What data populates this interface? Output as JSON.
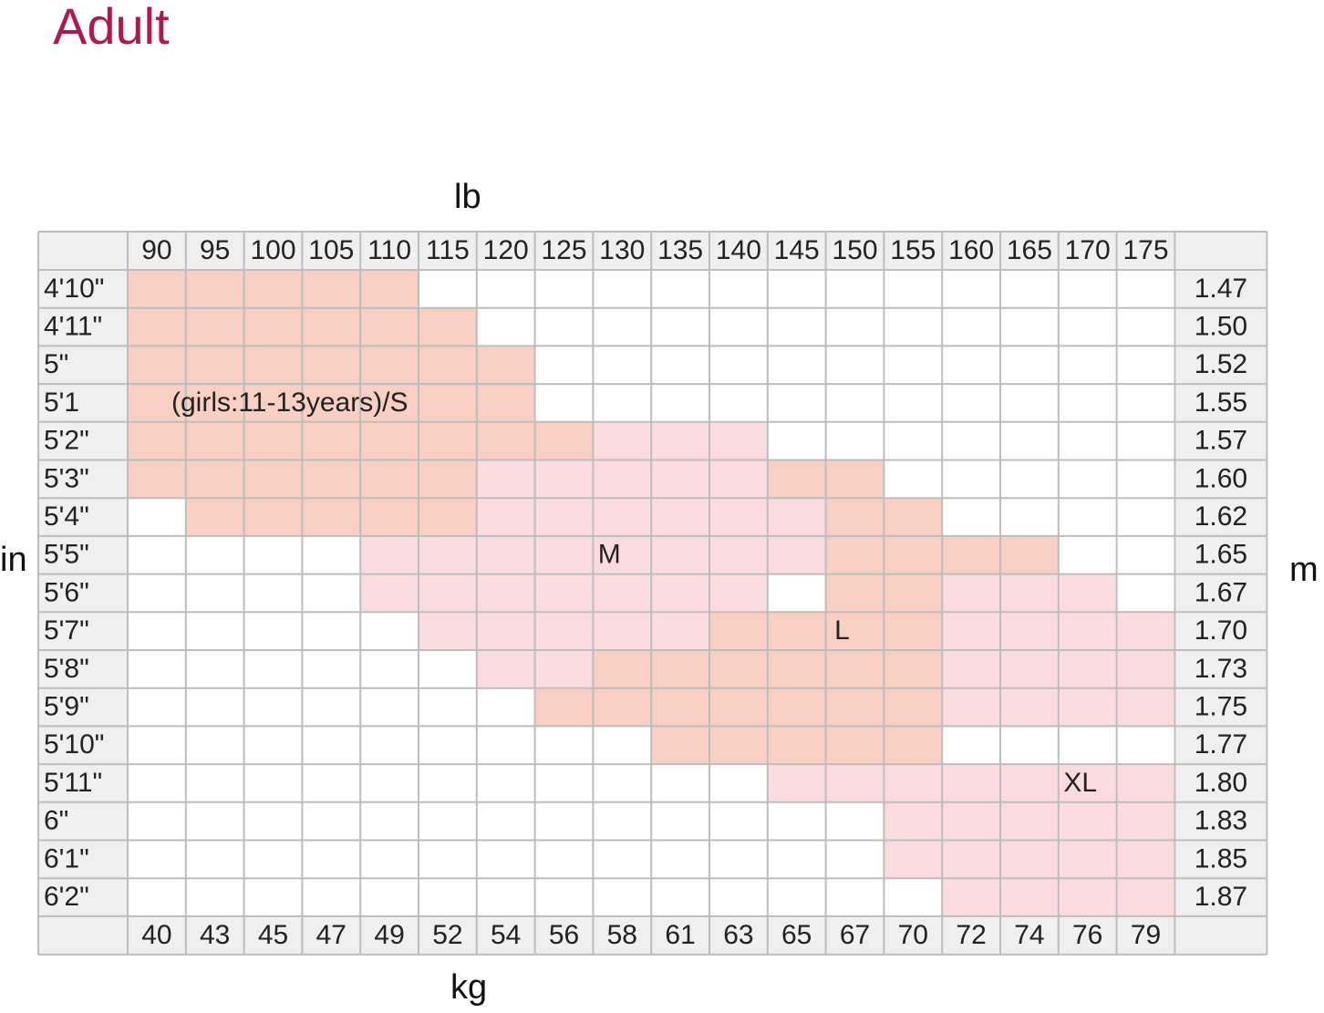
{
  "header": {
    "title": "Adult"
  },
  "axes": {
    "top": "lb",
    "bottom": "kg",
    "left": "in",
    "right": "m"
  },
  "colors": {
    "title": "#b0184f",
    "size_S": "#f8cfc3",
    "size_M": "#fadbe0",
    "size_L": "#f8cfc3",
    "size_XL": "#fadbe0",
    "header_bg": "#efefef",
    "grid": "#bdbdbd",
    "empty": "#ffffff"
  },
  "chart_data": {
    "type": "table",
    "title": "Adult",
    "x_top_label": "lb",
    "x_bottom_label": "kg",
    "y_left_label": "in",
    "y_right_label": "m",
    "weights_lb": [
      "90",
      "95",
      "100",
      "105",
      "110",
      "115",
      "120",
      "125",
      "130",
      "135",
      "140",
      "145",
      "150",
      "155",
      "160",
      "165",
      "170",
      "175"
    ],
    "weights_kg": [
      "40",
      "43",
      "45",
      "47",
      "49",
      "52",
      "54",
      "56",
      "58",
      "61",
      "63",
      "65",
      "67",
      "70",
      "72",
      "74",
      "76",
      "79"
    ],
    "heights_ft": [
      "4'10\"",
      "4'11\"",
      "5\"",
      "5'1",
      "5'2\"",
      "5'3\"",
      "5'4\"",
      "5'5\"",
      "5'6\"",
      "5'7\"",
      "5'8\"",
      "5'9\"",
      "5'10\"",
      "5'11\"",
      "6\"",
      "6'1\"",
      "6'2\""
    ],
    "heights_m": [
      "1.47",
      "1.50",
      "1.52",
      "1.55",
      "1.57",
      "1.60",
      "1.62",
      "1.65",
      "1.67",
      "1.70",
      "1.73",
      "1.75",
      "1.77",
      "1.80",
      "1.83",
      "1.85",
      "1.87"
    ],
    "sizes": [
      {
        "name": "S",
        "label": "(girls:11-13years)/S",
        "ranges": [
          [
            0,
            4
          ],
          [
            0,
            5
          ],
          [
            0,
            6
          ],
          [
            0,
            6
          ],
          [
            0,
            7
          ],
          [
            0,
            5
          ],
          [
            1,
            5
          ]
        ],
        "rows": [
          0,
          1,
          2,
          3,
          4,
          5,
          6
        ]
      },
      {
        "name": "M",
        "label": "M",
        "ranges": [
          [
            8,
            10
          ],
          [
            6,
            10
          ],
          [
            6,
            11
          ],
          [
            4,
            11
          ],
          [
            4,
            10
          ],
          [
            5,
            9
          ],
          [
            6,
            7
          ]
        ],
        "rows": [
          4,
          5,
          6,
          7,
          8,
          9,
          10
        ]
      },
      {
        "name": "L",
        "label": "L",
        "ranges": [
          [
            11,
            12
          ],
          [
            12,
            13
          ],
          [
            12,
            15
          ],
          [
            12,
            13
          ],
          [
            10,
            13
          ],
          [
            8,
            13
          ],
          [
            7,
            13
          ],
          [
            9,
            13
          ]
        ],
        "rows": [
          5,
          6,
          7,
          8,
          9,
          10,
          11,
          12
        ]
      },
      {
        "name": "XL",
        "label": "XL",
        "ranges": [
          [
            14,
            16
          ],
          [
            14,
            17
          ],
          [
            14,
            17
          ],
          [
            14,
            17
          ],
          [
            11,
            17
          ],
          [
            13,
            17
          ],
          [
            13,
            17
          ],
          [
            14,
            17
          ]
        ],
        "rows": [
          8,
          9,
          10,
          11,
          13,
          14,
          15,
          16
        ]
      }
    ],
    "size_label_cells": {
      "S": [
        3,
        0
      ],
      "M": [
        7,
        8
      ],
      "L": [
        9,
        12
      ],
      "XL": [
        13,
        16
      ]
    }
  }
}
